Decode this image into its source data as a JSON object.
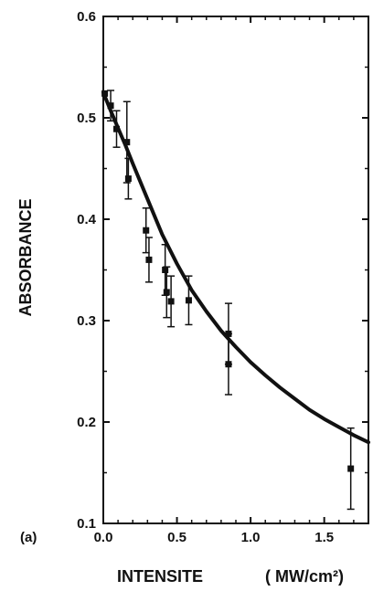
{
  "chart_data": {
    "type": "scatter",
    "panel_label": "(a)",
    "xlabel": "INTENSITE",
    "xunit": "( MW/cm²)",
    "ylabel": "ABSORBANCE",
    "xlim": [
      0.0,
      1.8
    ],
    "ylim": [
      0.1,
      0.6
    ],
    "x_ticks": [
      {
        "value": 0.0,
        "label": "0.0"
      },
      {
        "value": 0.5,
        "label": "0.5"
      },
      {
        "value": 1.0,
        "label": "1.0"
      },
      {
        "value": 1.5,
        "label": "1.5"
      }
    ],
    "y_ticks": [
      {
        "value": 0.1,
        "label": "0.1"
      },
      {
        "value": 0.2,
        "label": "0.2"
      },
      {
        "value": 0.3,
        "label": "0.3"
      },
      {
        "value": 0.4,
        "label": "0.4"
      },
      {
        "value": 0.5,
        "label": "0.5"
      },
      {
        "value": 0.6,
        "label": "0.6"
      }
    ],
    "grid": false,
    "series": [
      {
        "kind": "points_with_error_bars",
        "points": [
          {
            "x": 0.01,
            "y": 0.524,
            "err": 0.0
          },
          {
            "x": 0.05,
            "y": 0.512,
            "err": 0.015
          },
          {
            "x": 0.09,
            "y": 0.489,
            "err": 0.018
          },
          {
            "x": 0.16,
            "y": 0.476,
            "err": 0.04
          },
          {
            "x": 0.17,
            "y": 0.44,
            "err": 0.02
          },
          {
            "x": 0.29,
            "y": 0.389,
            "err": 0.022
          },
          {
            "x": 0.31,
            "y": 0.36,
            "err": 0.022
          },
          {
            "x": 0.42,
            "y": 0.35,
            "err": 0.025
          },
          {
            "x": 0.43,
            "y": 0.328,
            "err": 0.025
          },
          {
            "x": 0.46,
            "y": 0.319,
            "err": 0.025
          },
          {
            "x": 0.58,
            "y": 0.32,
            "err": 0.024
          },
          {
            "x": 0.85,
            "y": 0.287,
            "err": 0.03
          },
          {
            "x": 0.85,
            "y": 0.257,
            "err": 0.03
          },
          {
            "x": 1.68,
            "y": 0.154,
            "err": 0.04
          }
        ]
      },
      {
        "kind": "fit_curve",
        "x": [
          0.0,
          0.05,
          0.1,
          0.15,
          0.2,
          0.3,
          0.4,
          0.5,
          0.6,
          0.7,
          0.8,
          0.9,
          1.0,
          1.1,
          1.2,
          1.3,
          1.4,
          1.5,
          1.6,
          1.7,
          1.8
        ],
        "y": [
          0.525,
          0.507,
          0.49,
          0.473,
          0.455,
          0.42,
          0.385,
          0.356,
          0.33,
          0.309,
          0.29,
          0.274,
          0.259,
          0.246,
          0.234,
          0.223,
          0.212,
          0.203,
          0.195,
          0.187,
          0.18
        ]
      }
    ]
  }
}
